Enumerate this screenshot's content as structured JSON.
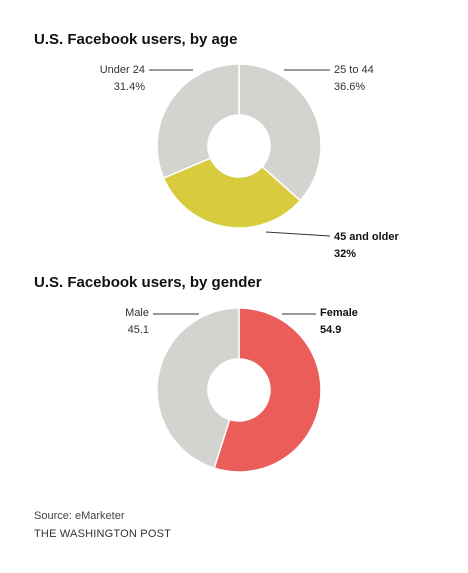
{
  "chart_data": [
    {
      "type": "pie",
      "title": "U.S. Facebook users, by age",
      "slices": [
        {
          "label": "25 to 44",
          "value_label": "36.6%",
          "value": 36.6,
          "color": "#d3d3cf",
          "bold": false
        },
        {
          "label": "45 and older",
          "value_label": "32%",
          "value": 32,
          "color": "#d8cb3d",
          "bold": true
        },
        {
          "label": "Under 24",
          "value_label": "31.4%",
          "value": 31.4,
          "color": "#d3d3cf",
          "bold": false
        }
      ]
    },
    {
      "type": "pie",
      "title": "U.S. Facebook users, by gender",
      "slices": [
        {
          "label": "Female",
          "value_label": "54.9",
          "value": 54.9,
          "color": "#ea5d58",
          "bold": true
        },
        {
          "label": "Male",
          "value_label": "45.1",
          "value": 45.1,
          "color": "#d3d3cf",
          "bold": false
        }
      ]
    }
  ],
  "footer": {
    "source": "Source: eMarketer",
    "credit": "THE WASHINGTON POST"
  }
}
